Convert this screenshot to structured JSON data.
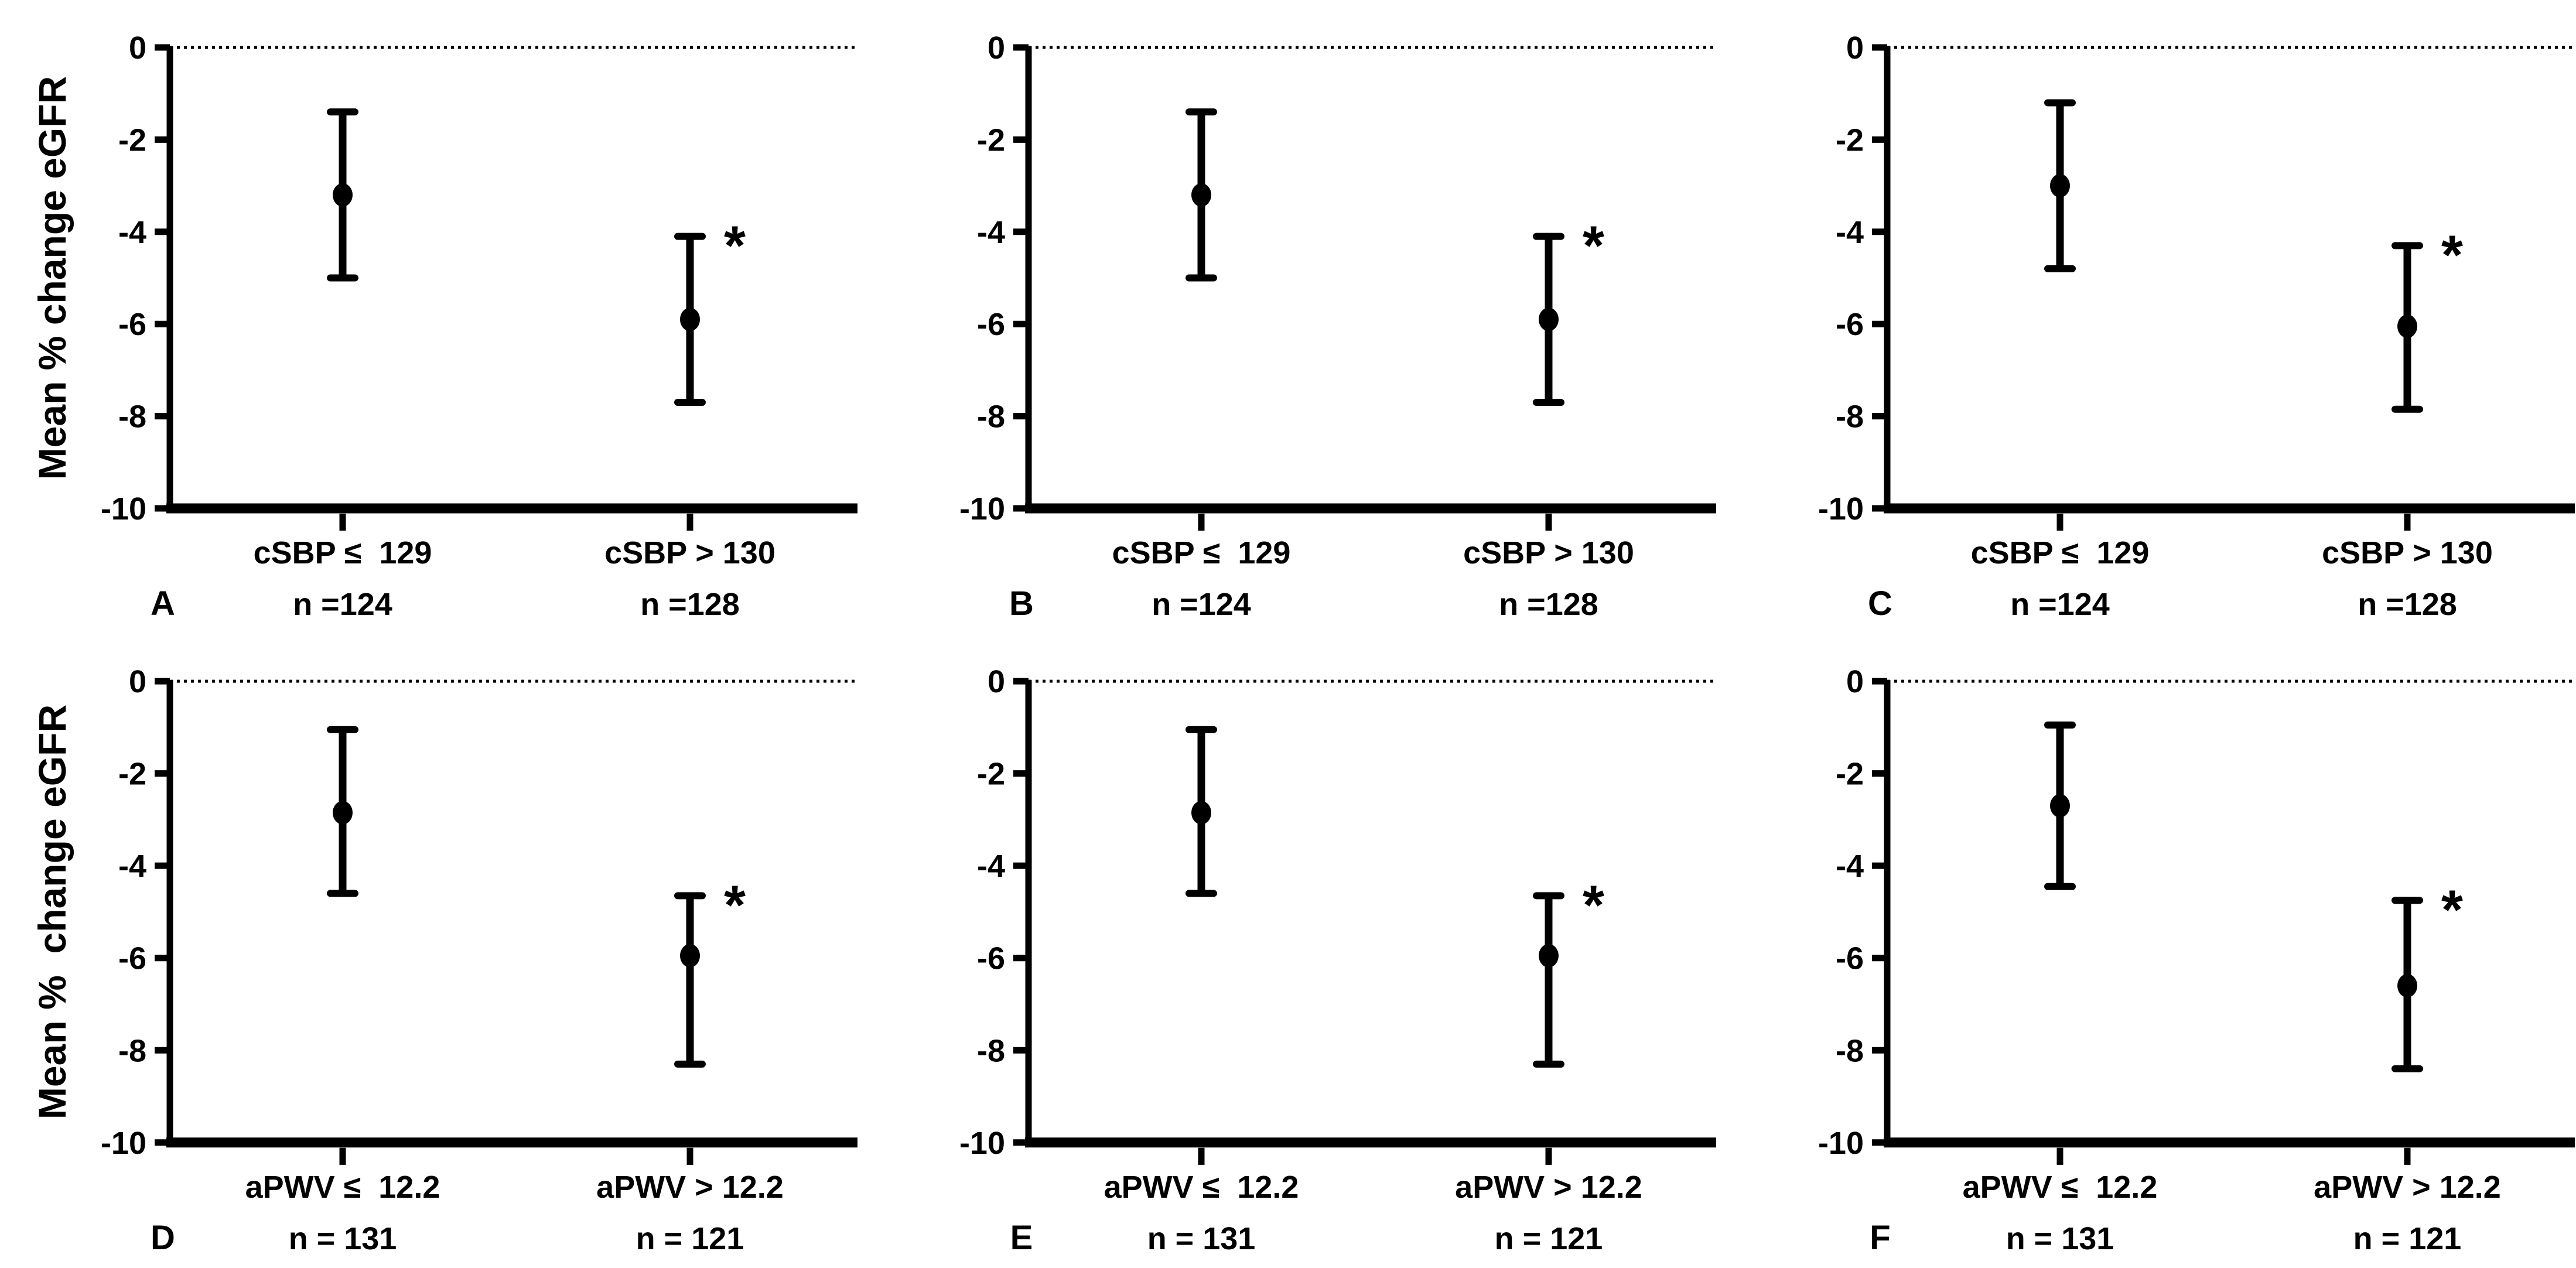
{
  "figure": {
    "background": "#ffffff",
    "ink": "#000000",
    "significance_marker": "*"
  },
  "chart_data": [
    {
      "type": "scatter",
      "panel_label": "A",
      "ylabel": "Mean % change eGFR",
      "ylim": [
        -10,
        0
      ],
      "yticks": [
        0,
        -2,
        -4,
        -6,
        -8,
        -10
      ],
      "ytick_labels": [
        "0",
        "-2",
        "-4",
        "-6",
        "-8",
        "-10"
      ],
      "zero_reference_line": "dotted",
      "error_bars": true,
      "grid": false,
      "points": [
        {
          "category": "cSBP ≤  129",
          "n_label": "n =124",
          "mean": -3.2,
          "upper": -1.4,
          "lower": -5.0,
          "significance": ""
        },
        {
          "category": "cSBP > 130",
          "n_label": "n =128",
          "mean": -5.9,
          "upper": -4.1,
          "lower": -7.7,
          "significance": "*"
        }
      ]
    },
    {
      "type": "scatter",
      "panel_label": "B",
      "ylabel": "",
      "ylim": [
        -10,
        0
      ],
      "yticks": [
        0,
        -2,
        -4,
        -6,
        -8,
        -10
      ],
      "ytick_labels": [
        "0",
        "-2",
        "-4",
        "-6",
        "-8",
        "-10"
      ],
      "zero_reference_line": "dotted",
      "error_bars": true,
      "grid": false,
      "points": [
        {
          "category": "cSBP ≤  129",
          "n_label": "n =124",
          "mean": -3.2,
          "upper": -1.4,
          "lower": -5.0,
          "significance": ""
        },
        {
          "category": "cSBP > 130",
          "n_label": "n =128",
          "mean": -5.9,
          "upper": -4.1,
          "lower": -7.7,
          "significance": "*"
        }
      ]
    },
    {
      "type": "scatter",
      "panel_label": "C",
      "ylabel": "",
      "ylim": [
        -10,
        0
      ],
      "yticks": [
        0,
        -2,
        -4,
        -6,
        -8,
        -10
      ],
      "ytick_labels": [
        "0",
        "-2",
        "-4",
        "-6",
        "-8",
        "-10"
      ],
      "zero_reference_line": "dotted",
      "error_bars": true,
      "grid": false,
      "points": [
        {
          "category": "cSBP ≤  129",
          "n_label": "n =124",
          "mean": -3.0,
          "upper": -1.2,
          "lower": -4.8,
          "significance": ""
        },
        {
          "category": "cSBP > 130",
          "n_label": "n =128",
          "mean": -6.05,
          "upper": -4.3,
          "lower": -7.85,
          "significance": "*"
        }
      ]
    },
    {
      "type": "scatter",
      "panel_label": "D",
      "ylabel": "Mean %  change eGFR",
      "ylim": [
        -10,
        0
      ],
      "yticks": [
        0,
        -2,
        -4,
        -6,
        -8,
        -10
      ],
      "ytick_labels": [
        "0",
        "-2",
        "-4",
        "-6",
        "-8",
        "-10"
      ],
      "zero_reference_line": "dotted",
      "error_bars": true,
      "grid": false,
      "points": [
        {
          "category": "aPWV ≤  12.2",
          "n_label": "n = 131",
          "mean": -2.85,
          "upper": -1.05,
          "lower": -4.6,
          "significance": ""
        },
        {
          "category": "aPWV > 12.2",
          "n_label": "n = 121",
          "mean": -5.95,
          "upper": -4.65,
          "lower": -8.3,
          "significance": "*"
        }
      ]
    },
    {
      "type": "scatter",
      "panel_label": "E",
      "ylabel": "",
      "ylim": [
        -10,
        0
      ],
      "yticks": [
        0,
        -2,
        -4,
        -6,
        -8,
        -10
      ],
      "ytick_labels": [
        "0",
        "-2",
        "-4",
        "-6",
        "-8",
        "-10"
      ],
      "zero_reference_line": "dotted",
      "error_bars": true,
      "grid": false,
      "points": [
        {
          "category": "aPWV ≤  12.2",
          "n_label": "n = 131",
          "mean": -2.85,
          "upper": -1.05,
          "lower": -4.6,
          "significance": ""
        },
        {
          "category": "aPWV > 12.2",
          "n_label": "n = 121",
          "mean": -5.95,
          "upper": -4.65,
          "lower": -8.3,
          "significance": "*"
        }
      ]
    },
    {
      "type": "scatter",
      "panel_label": "F",
      "ylabel": "",
      "ylim": [
        -10,
        0
      ],
      "yticks": [
        0,
        -2,
        -4,
        -6,
        -8,
        -10
      ],
      "ytick_labels": [
        "0",
        "-2",
        "-4",
        "-6",
        "-8",
        "-10"
      ],
      "zero_reference_line": "dotted",
      "error_bars": true,
      "grid": false,
      "points": [
        {
          "category": "aPWV ≤  12.2",
          "n_label": "n = 131",
          "mean": -2.7,
          "upper": -0.95,
          "lower": -4.45,
          "significance": ""
        },
        {
          "category": "aPWV > 12.2",
          "n_label": "n = 121",
          "mean": -6.6,
          "upper": -4.75,
          "lower": -8.4,
          "significance": "*"
        }
      ]
    }
  ]
}
